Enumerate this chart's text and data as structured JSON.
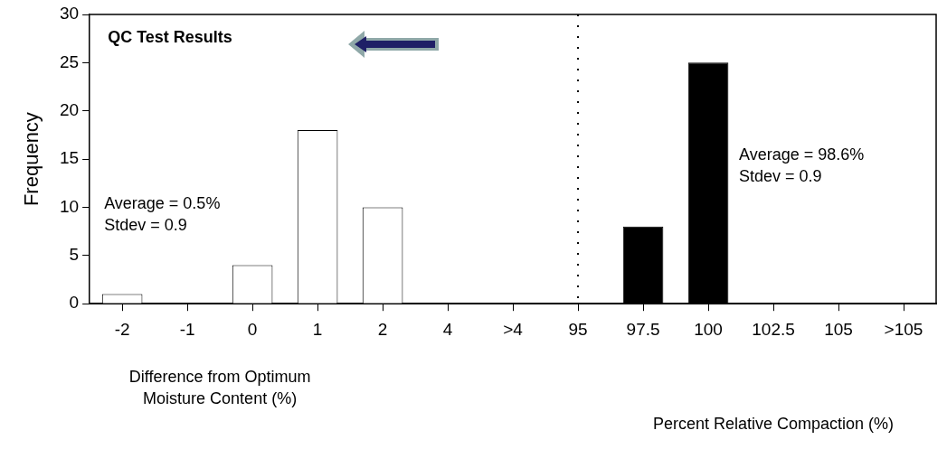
{
  "chart_data": {
    "type": "bar",
    "title": "QC Test Results",
    "xlabel": "Difference from Optimum\nMoisture Content (%)",
    "ylabel": "Frequency",
    "categories": [
      "-2",
      "-1",
      "0",
      "1",
      "2",
      "4",
      ">4",
      "95",
      "97.5",
      "100",
      "102.5",
      "105",
      ">105"
    ],
    "series": [
      {
        "color": "#ffffff",
        "values": [
          1,
          0,
          4,
          18,
          10,
          0,
          0,
          null,
          null,
          null,
          null,
          null,
          null
        ]
      },
      {
        "color": "#000000",
        "values": [
          null,
          null,
          null,
          null,
          null,
          null,
          null,
          0,
          8,
          25,
          0,
          0,
          0
        ]
      }
    ],
    "ylim": [
      0,
      30
    ],
    "yticks": [
      0,
      5,
      10,
      15,
      20,
      25,
      30
    ],
    "grid": false,
    "legend": false,
    "ref_lines": [
      {
        "axis": "x",
        "value": "95",
        "line_style": "dotted",
        "color": "#000000"
      }
    ],
    "annotations": [
      "Average = 0.5%\nStdev = 0.9",
      "Average = 98.6%\nStdev = 0.9",
      "Percent Relative Compaction (%)"
    ]
  }
}
